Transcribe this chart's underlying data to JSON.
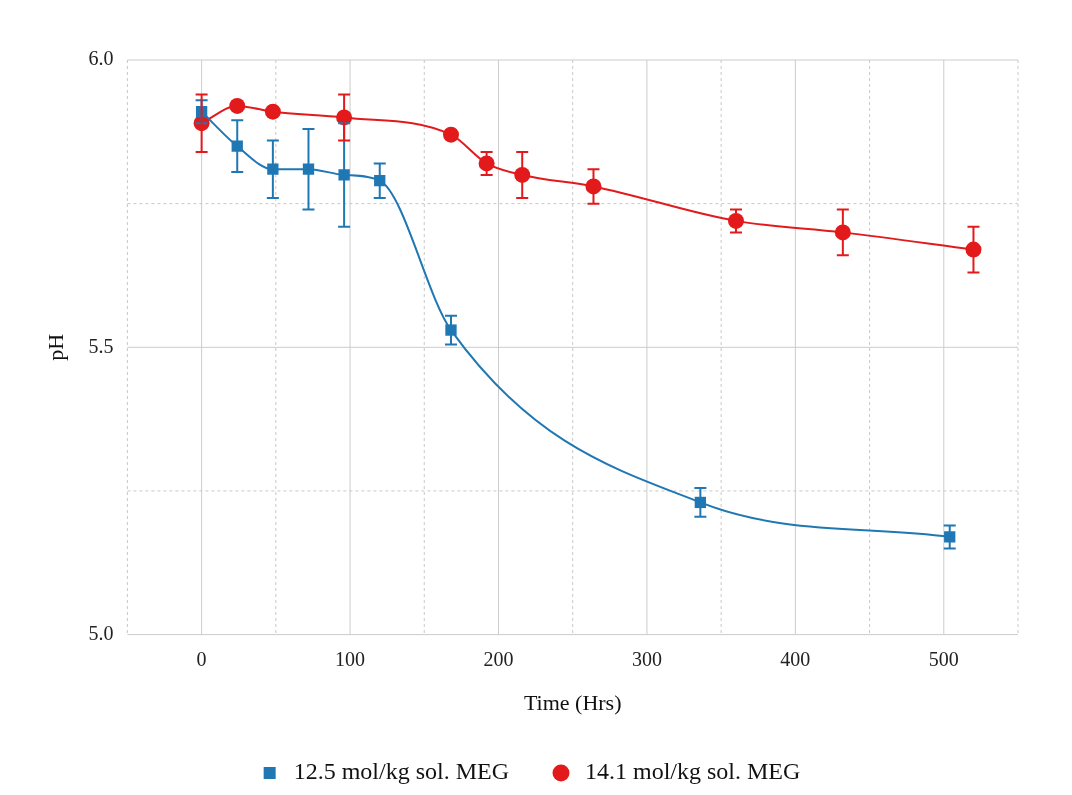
{
  "chart_data": {
    "type": "line",
    "xlabel": "Time (Hrs)",
    "ylabel": "pH",
    "xlim": [
      -50,
      550
    ],
    "xticks": [
      {
        "value": -50,
        "label": null
      },
      0,
      {
        "value": 50,
        "label": null
      },
      100,
      {
        "value": 150,
        "label": null
      },
      200,
      {
        "value": 250,
        "label": null
      },
      300,
      {
        "value": 350,
        "label": null
      },
      400,
      {
        "value": 450,
        "label": null
      },
      500,
      {
        "value": 550,
        "label": null
      }
    ],
    "ylim": [
      5.0,
      6.0
    ],
    "yticks": [
      {
        "value": 5.0,
        "label": "5.0"
      },
      {
        "value": 5.25,
        "label": null
      },
      {
        "value": 5.5,
        "label": "5.5"
      },
      {
        "value": 5.75,
        "label": null
      },
      {
        "value": 6.0,
        "label": "6.0"
      }
    ],
    "grid": true,
    "legend": "bottom",
    "series": [
      {
        "name": "12.5 mol/kg sol. MEG",
        "color": "#1f77b4",
        "marker": "square",
        "x": [
          0,
          24,
          48,
          72,
          96,
          120,
          168,
          336,
          504
        ],
        "values": [
          5.91,
          5.85,
          5.81,
          5.81,
          5.8,
          5.79,
          5.53,
          5.23,
          5.17
        ],
        "errors": [
          0.02,
          0.045,
          0.05,
          0.07,
          0.09,
          0.03,
          0.025,
          0.025,
          0.02
        ]
      },
      {
        "name": "14.1 mol/kg sol. MEG",
        "color": "#e31a1c",
        "marker": "circle",
        "x": [
          0,
          24,
          48,
          96,
          168,
          192,
          216,
          264,
          360,
          432,
          520
        ],
        "values": [
          5.89,
          5.92,
          5.91,
          5.9,
          5.87,
          5.82,
          5.8,
          5.78,
          5.72,
          5.7,
          5.67
        ],
        "errors": [
          0.05,
          null,
          null,
          0.04,
          null,
          0.02,
          0.04,
          0.03,
          0.02,
          0.04,
          0.04
        ]
      }
    ]
  }
}
